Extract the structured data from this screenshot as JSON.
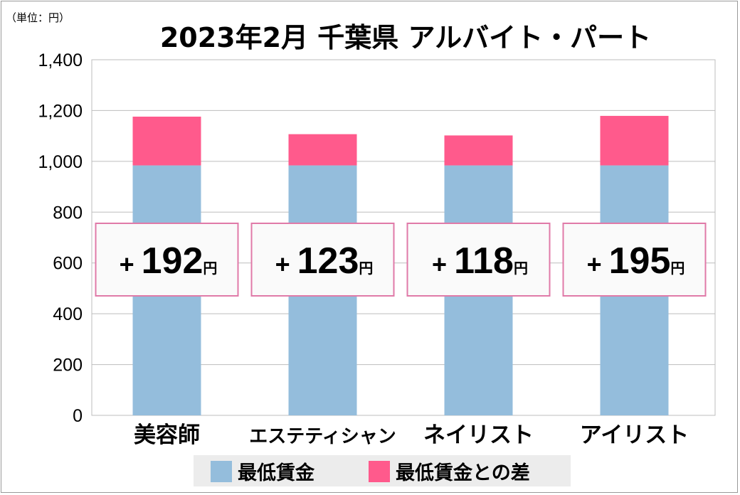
{
  "header": {
    "unit_label": "（単位：円）",
    "title": "2023年2月 千葉県 アルバイト・パート"
  },
  "colors": {
    "min_wage": "#94bddc",
    "difference": "#ff5a8c",
    "callout_border": "#e07aa8"
  },
  "legend": {
    "items": [
      "最低賃金",
      "最低賃金との差"
    ]
  },
  "chart_data": {
    "type": "bar",
    "stacked": true,
    "categories": [
      "美容師",
      "エステティシャン",
      "ネイリスト",
      "アイリスト"
    ],
    "series": [
      {
        "name": "最低賃金",
        "values": [
          984,
          984,
          984,
          984
        ]
      },
      {
        "name": "最低賃金との差",
        "values": [
          192,
          123,
          118,
          195
        ]
      }
    ],
    "data_labels": [
      "+192円",
      "+123円",
      "+118円",
      "+195円"
    ],
    "ylim": [
      0,
      1400
    ],
    "yticks": [
      0,
      200,
      400,
      600,
      800,
      1000,
      1200,
      1400
    ],
    "ytick_labels": [
      "0",
      "200",
      "400",
      "600",
      "800",
      "1,000",
      "1,200",
      "1,400"
    ],
    "grid": true,
    "legend_position": "bottom"
  }
}
